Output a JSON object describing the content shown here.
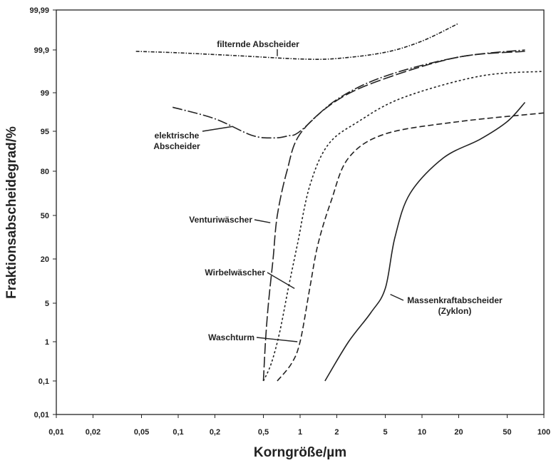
{
  "chart_data": {
    "type": "line",
    "title": "",
    "xlabel": "Korngröße/µm",
    "ylabel": "Fraktionsabscheidegrad/%",
    "x_scale": "log",
    "y_scale": "probability",
    "xlim": [
      0.01,
      100
    ],
    "ylim": [
      0.01,
      99.99
    ],
    "grid": false,
    "legend": "none",
    "x_ticks": [
      {
        "value": 0.01,
        "label": "0,01"
      },
      {
        "value": 0.02,
        "label": "0,02"
      },
      {
        "value": 0.05,
        "label": "0,05"
      },
      {
        "value": 0.1,
        "label": "0,1"
      },
      {
        "value": 0.2,
        "label": "0,2"
      },
      {
        "value": 0.5,
        "label": "0,5"
      },
      {
        "value": 1,
        "label": "1"
      },
      {
        "value": 2,
        "label": "2"
      },
      {
        "value": 5,
        "label": "5"
      },
      {
        "value": 10,
        "label": "10"
      },
      {
        "value": 20,
        "label": "20"
      },
      {
        "value": 50,
        "label": "50"
      },
      {
        "value": 100,
        "label": "100"
      }
    ],
    "y_ticks": [
      {
        "value": 0.01,
        "label": "0,01"
      },
      {
        "value": 0.1,
        "label": "0,1"
      },
      {
        "value": 1,
        "label": "1"
      },
      {
        "value": 5,
        "label": "5"
      },
      {
        "value": 20,
        "label": "20"
      },
      {
        "value": 50,
        "label": "50"
      },
      {
        "value": 80,
        "label": "80"
      },
      {
        "value": 95,
        "label": "95"
      },
      {
        "value": 99,
        "label": "99"
      },
      {
        "value": 99.9,
        "label": "99,9"
      },
      {
        "value": 99.99,
        "label": "99,99"
      }
    ],
    "series": [
      {
        "label": "filternde Abscheider",
        "dash": "dot-dash",
        "points": [
          [
            0.045,
            99.87
          ],
          [
            0.1,
            99.84
          ],
          [
            0.3,
            99.78
          ],
          [
            1.0,
            99.71
          ],
          [
            2.0,
            99.72
          ],
          [
            5.0,
            99.85
          ],
          [
            10.0,
            99.92
          ],
          [
            20.0,
            99.96
          ]
        ],
        "label_point": [
          0.65,
          99.77
        ]
      },
      {
        "label": "elektrische Abscheider",
        "dash": "long-dash-dot",
        "points": [
          [
            0.09,
            97.5
          ],
          [
            0.2,
            96.3
          ],
          [
            0.4,
            93.5
          ],
          [
            0.6,
            92.5
          ],
          [
            0.8,
            93.3
          ],
          [
            1.0,
            95.0
          ],
          [
            2.0,
            98.3
          ],
          [
            5.0,
            99.35
          ],
          [
            20.0,
            99.75
          ],
          [
            70.0,
            99.9
          ]
        ],
        "label_point": [
          0.28,
          95.5
        ]
      },
      {
        "label": "Venturiwäscher",
        "dash": "long-dash",
        "points": [
          [
            0.5,
            0.1
          ],
          [
            0.52,
            1
          ],
          [
            0.55,
            5
          ],
          [
            0.6,
            20
          ],
          [
            0.65,
            50
          ],
          [
            0.78,
            80
          ],
          [
            1.0,
            94
          ],
          [
            2.0,
            98.2
          ],
          [
            5.0,
            99.3
          ],
          [
            20.0,
            99.75
          ],
          [
            70.0,
            99.87
          ]
        ],
        "label_point": [
          0.57,
          45
        ]
      },
      {
        "label": "Wirbelwäscher",
        "dash": "short-dash",
        "points": [
          [
            0.5,
            0.1
          ],
          [
            0.58,
            0.5
          ],
          [
            0.68,
            2
          ],
          [
            0.8,
            10
          ],
          [
            0.95,
            30
          ],
          [
            1.2,
            70
          ],
          [
            1.7,
            90
          ],
          [
            3.0,
            96
          ],
          [
            7.0,
            98.5
          ],
          [
            30.0,
            99.35
          ],
          [
            100.0,
            99.45
          ]
        ],
        "label_point": [
          0.9,
          10
        ]
      },
      {
        "label": "Waschturm",
        "dash": "medium-dash",
        "points": [
          [
            0.65,
            0.1
          ],
          [
            0.85,
            0.5
          ],
          [
            1.0,
            1
          ],
          [
            1.2,
            10
          ],
          [
            1.4,
            30
          ],
          [
            1.8,
            60
          ],
          [
            2.5,
            85
          ],
          [
            5.0,
            94
          ],
          [
            20.0,
            96
          ],
          [
            100.0,
            96.9
          ]
        ],
        "label_point": [
          0.95,
          1
        ]
      },
      {
        "label": "Massenkraftabscheider (Zyklon)",
        "dash": "solid",
        "points": [
          [
            1.6,
            0.1
          ],
          [
            2.5,
            1
          ],
          [
            3.8,
            4
          ],
          [
            5.0,
            10
          ],
          [
            6.0,
            35
          ],
          [
            8.0,
            65
          ],
          [
            15.0,
            85
          ],
          [
            30.0,
            92
          ],
          [
            50.0,
            96
          ],
          [
            70.0,
            98
          ]
        ],
        "label_point": [
          5.5,
          8
        ]
      }
    ],
    "annotations": [
      {
        "series": 0,
        "lines": [
          "filternde Abscheider"
        ]
      },
      {
        "series": 1,
        "lines": [
          "elektrische",
          "Abscheider"
        ]
      },
      {
        "series": 2,
        "lines": [
          "Venturiwäscher"
        ]
      },
      {
        "series": 3,
        "lines": [
          "Wirbelwäscher"
        ]
      },
      {
        "series": 4,
        "lines": [
          "Waschturm"
        ]
      },
      {
        "series": 5,
        "lines": [
          "Massenkraftabscheider",
          "(Zyklon)"
        ]
      }
    ]
  }
}
